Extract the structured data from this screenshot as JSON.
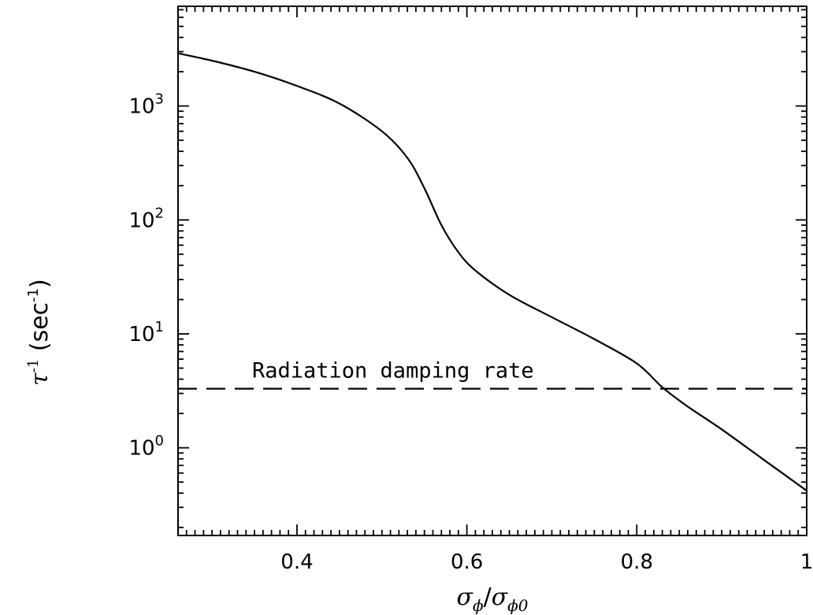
{
  "chart_data": {
    "type": "line",
    "title": "",
    "xlabel": {
      "main": "σ",
      "sub": "ϕ",
      "slash": "/",
      "main2": "σ",
      "sub2": "ϕ0"
    },
    "ylabel": {
      "tau": "τ",
      "exp": "-1",
      "open": " (sec",
      "close": ")"
    },
    "x_scale": "linear",
    "y_scale": "log",
    "xlim": [
      0.26,
      1.0
    ],
    "ylim": [
      0.17,
      7500
    ],
    "x_ticks": [
      {
        "value": 0.4,
        "label": "0.4"
      },
      {
        "value": 0.6,
        "label": "0.6"
      },
      {
        "value": 0.8,
        "label": "0.8"
      },
      {
        "value": 1.0,
        "label": "1"
      }
    ],
    "y_ticks": [
      {
        "value": 1,
        "base": "10",
        "exp": "0"
      },
      {
        "value": 10,
        "base": "10",
        "exp": "1"
      },
      {
        "value": 100,
        "base": "10",
        "exp": "2"
      },
      {
        "value": 1000,
        "base": "10",
        "exp": "3"
      }
    ],
    "series": [
      {
        "style": "solid",
        "x": [
          0.26,
          0.3,
          0.35,
          0.4,
          0.45,
          0.5,
          0.53,
          0.55,
          0.57,
          0.59,
          0.61,
          0.65,
          0.7,
          0.75,
          0.8,
          0.83,
          0.86,
          0.9,
          0.95,
          1.0
        ],
        "y": [
          2900,
          2500,
          2000,
          1500,
          1050,
          600,
          350,
          190,
          90,
          52,
          36,
          22,
          14,
          9,
          5.5,
          3.4,
          2.3,
          1.45,
          0.78,
          0.42
        ]
      }
    ],
    "reference_line": {
      "style": "dashed",
      "y": 3.3,
      "label": "Radiation damping rate"
    }
  }
}
